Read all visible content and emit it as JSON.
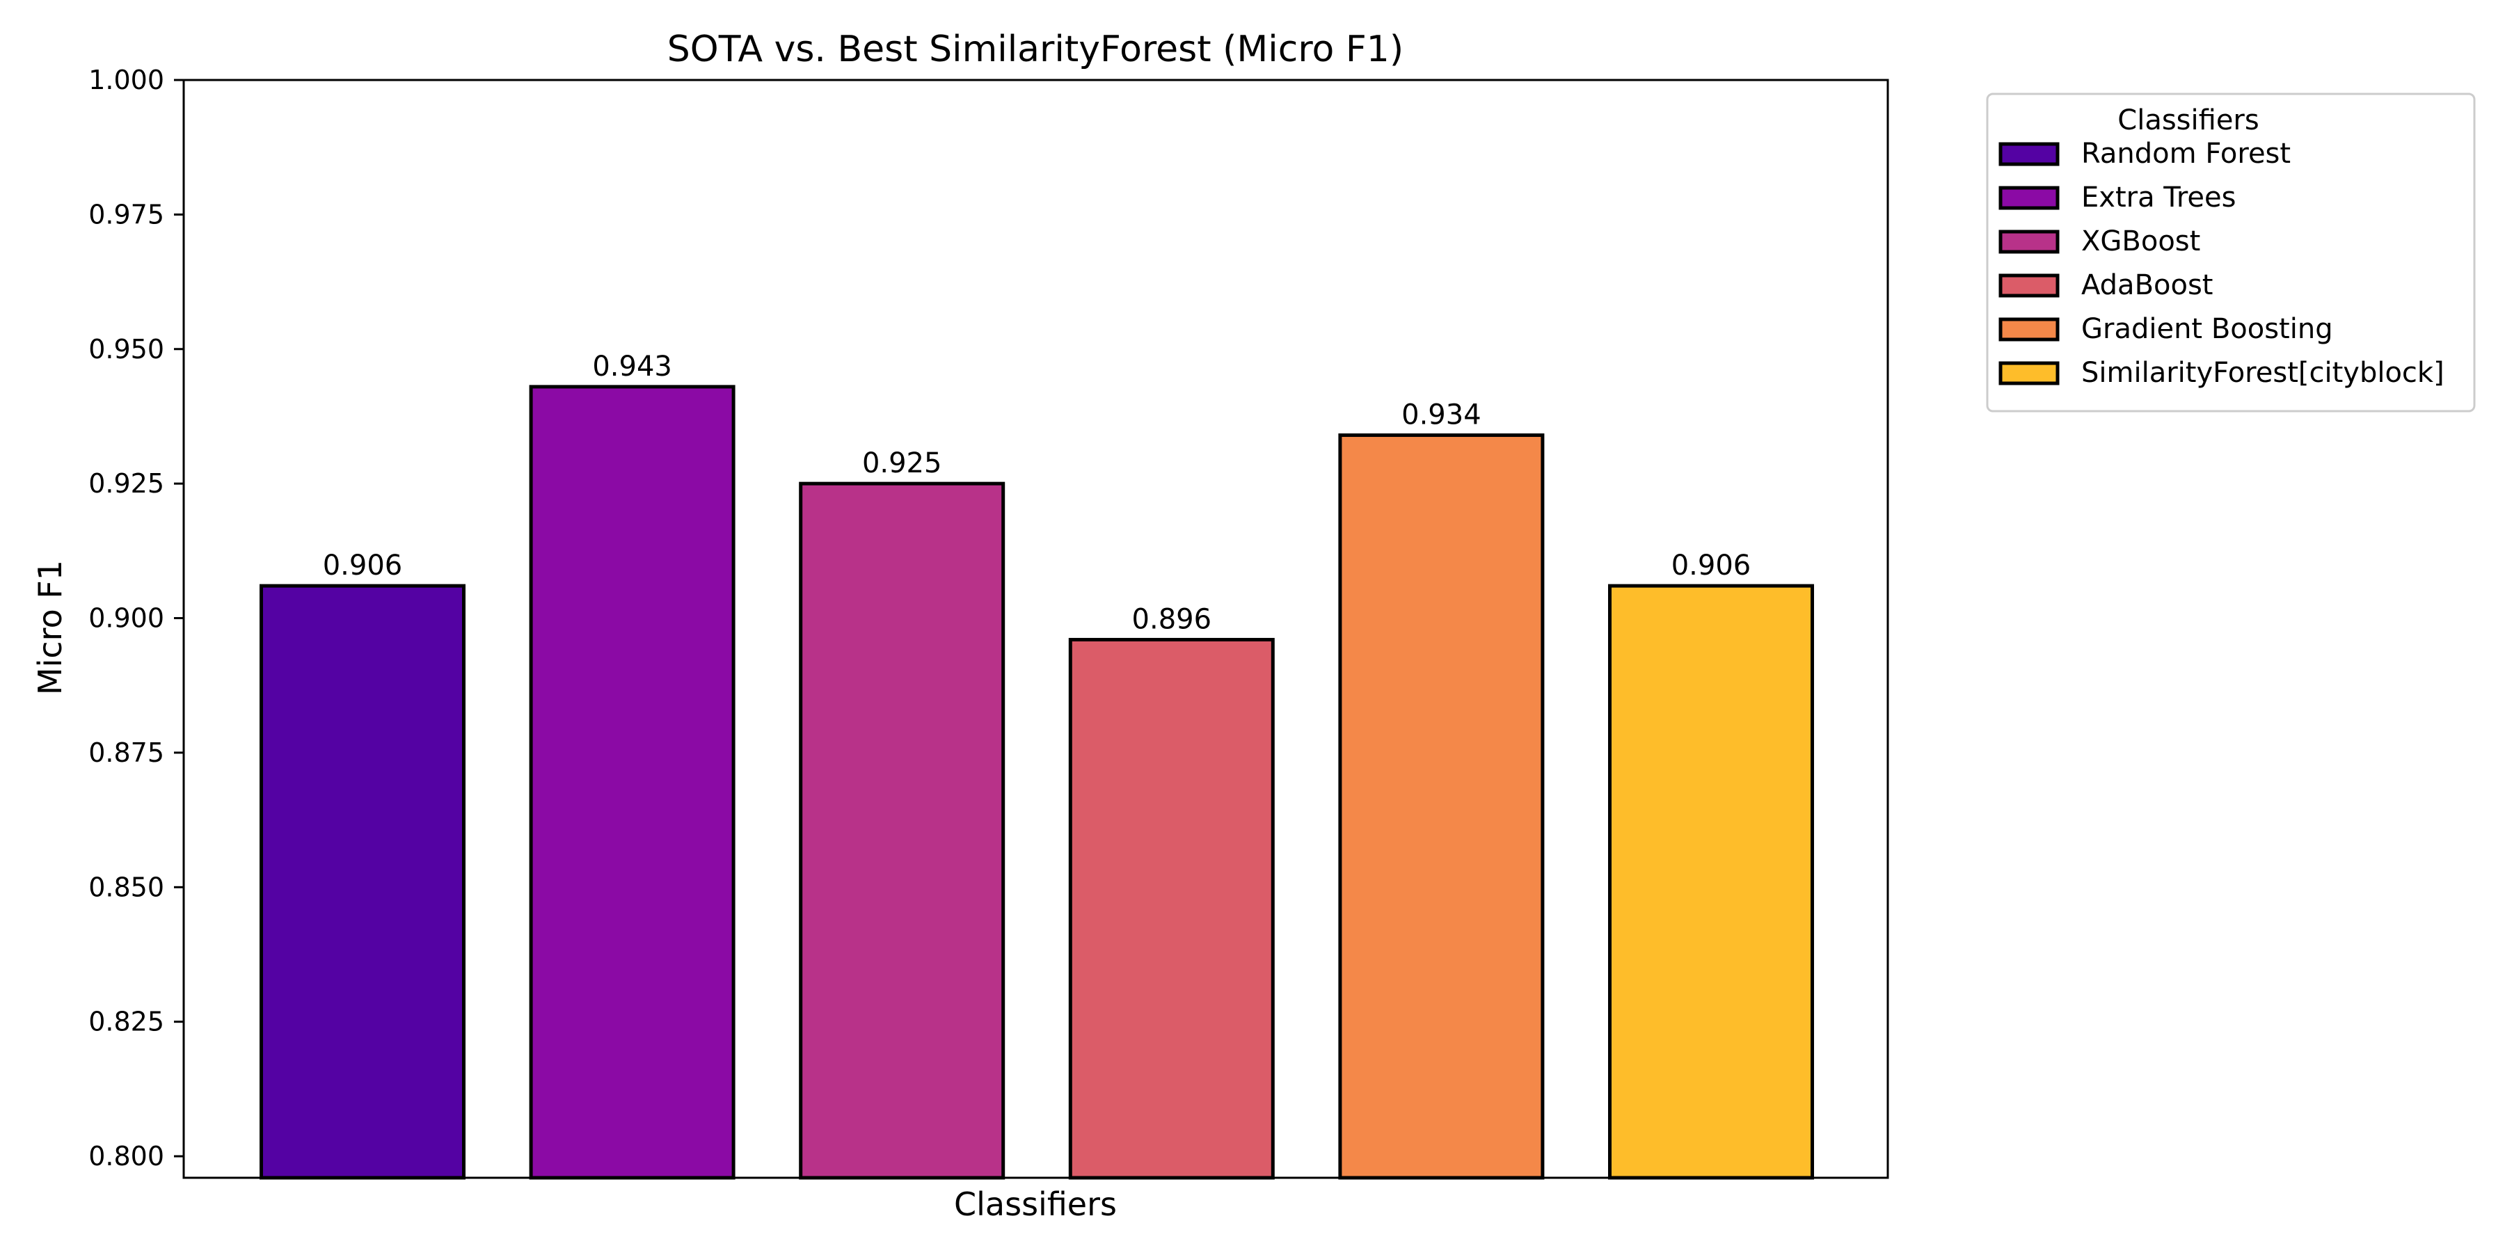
{
  "chart_data": {
    "type": "bar",
    "title": "SOTA vs. Best SimilarityForest (Micro F1)",
    "xlabel": "Classifiers",
    "ylabel": "Micro F1",
    "ylim": [
      0.796,
      1.0
    ],
    "yticks": [
      "0.800",
      "0.825",
      "0.850",
      "0.875",
      "0.900",
      "0.925",
      "0.950",
      "0.975",
      "1.000"
    ],
    "ytick_values": [
      0.8,
      0.825,
      0.85,
      0.875,
      0.9,
      0.925,
      0.95,
      0.975,
      1.0
    ],
    "categories": [
      "Random Forest",
      "Extra Trees",
      "XGBoost",
      "AdaBoost",
      "Gradient Boosting",
      "SimilarityForest[cityblock]"
    ],
    "values": [
      0.906,
      0.943,
      0.925,
      0.896,
      0.934,
      0.906
    ],
    "value_labels": [
      "0.906",
      "0.943",
      "0.925",
      "0.896",
      "0.934",
      "0.906"
    ],
    "colors": [
      "#5402a3",
      "#8b0aa5",
      "#b83289",
      "#db5c68",
      "#f48849",
      "#febd2a"
    ],
    "grid": false,
    "legend": {
      "title": "Classifiers",
      "placement": "outside upper right"
    }
  }
}
